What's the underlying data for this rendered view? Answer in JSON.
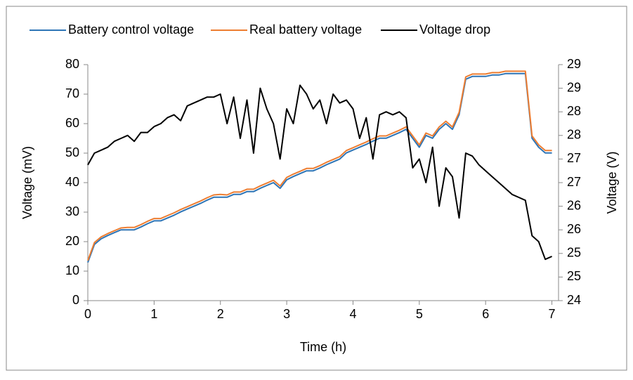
{
  "chart_data": {
    "type": "line",
    "x_label": "Time (h)",
    "y_label": "Voltage (mV)",
    "y2_label": "Voltage (V)",
    "legend": "top",
    "xlim": [
      0,
      7.1
    ],
    "xticks": [
      0,
      1,
      2,
      3,
      4,
      5,
      6,
      7
    ],
    "ylim": [
      0,
      80
    ],
    "yticks": [
      0,
      10,
      20,
      30,
      40,
      50,
      60,
      70,
      80
    ],
    "y2lim": [
      24,
      29
    ],
    "y2ticks": [
      24,
      {
        "value": 24.5,
        "label": "25"
      },
      25,
      {
        "value": 25.5,
        "label": "26"
      },
      26,
      {
        "value": 26.5,
        "label": "27"
      },
      27,
      {
        "value": 27.5,
        "label": "28"
      },
      28,
      {
        "value": 28.5,
        "label": "29"
      },
      29
    ],
    "x": [
      0,
      0.1,
      0.2,
      0.3,
      0.4,
      0.5,
      0.6,
      0.7,
      0.8,
      0.9,
      1.0,
      1.1,
      1.2,
      1.3,
      1.4,
      1.5,
      1.6,
      1.7,
      1.8,
      1.9,
      2.0,
      2.1,
      2.2,
      2.3,
      2.4,
      2.5,
      2.6,
      2.7,
      2.8,
      2.9,
      3.0,
      3.1,
      3.2,
      3.3,
      3.4,
      3.5,
      3.6,
      3.7,
      3.8,
      3.9,
      4.0,
      4.1,
      4.2,
      4.3,
      4.4,
      4.5,
      4.6,
      4.7,
      4.8,
      4.9,
      5.0,
      5.1,
      5.2,
      5.3,
      5.4,
      5.5,
      5.6,
      5.7,
      5.8,
      5.9,
      6.0,
      6.1,
      6.2,
      6.3,
      6.4,
      6.5,
      6.6,
      6.7,
      6.8,
      6.9,
      7.0
    ],
    "series": [
      {
        "name": "Battery control voltage",
        "color": "#2e75b6",
        "axis": "y2",
        "values": [
          24.81,
          25.19,
          25.31,
          25.38,
          25.44,
          25.5,
          25.5,
          25.5,
          25.56,
          25.63,
          25.69,
          25.69,
          25.75,
          25.81,
          25.88,
          25.94,
          26.0,
          26.06,
          26.13,
          26.19,
          26.19,
          26.19,
          26.25,
          26.25,
          26.31,
          26.31,
          26.38,
          26.44,
          26.5,
          26.38,
          26.56,
          26.63,
          26.69,
          26.75,
          26.75,
          26.81,
          26.88,
          26.94,
          27.0,
          27.13,
          27.19,
          27.25,
          27.31,
          27.38,
          27.44,
          27.44,
          27.5,
          27.56,
          27.63,
          27.44,
          27.25,
          27.5,
          27.44,
          27.63,
          27.75,
          27.63,
          27.94,
          28.69,
          28.75,
          28.75,
          28.75,
          28.78,
          28.78,
          28.81,
          28.81,
          28.81,
          28.81,
          27.44,
          27.25,
          27.13,
          27.13
        ]
      },
      {
        "name": "Real battery voltage",
        "color": "#ed7d31",
        "axis": "y2",
        "values": [
          24.85,
          25.23,
          25.35,
          25.42,
          25.48,
          25.54,
          25.55,
          25.55,
          25.61,
          25.68,
          25.74,
          25.74,
          25.8,
          25.86,
          25.93,
          25.99,
          26.05,
          26.11,
          26.18,
          26.24,
          26.25,
          26.24,
          26.3,
          26.3,
          26.36,
          26.36,
          26.43,
          26.49,
          26.55,
          26.43,
          26.61,
          26.68,
          26.74,
          26.8,
          26.8,
          26.86,
          26.93,
          26.99,
          27.05,
          27.18,
          27.24,
          27.3,
          27.36,
          27.43,
          27.49,
          27.49,
          27.55,
          27.61,
          27.68,
          27.49,
          27.3,
          27.55,
          27.49,
          27.68,
          27.8,
          27.68,
          27.99,
          28.74,
          28.8,
          28.8,
          28.8,
          28.83,
          28.83,
          28.86,
          28.86,
          28.86,
          28.86,
          27.49,
          27.3,
          27.18,
          27.18
        ]
      },
      {
        "name": "Voltage drop",
        "color": "#000000",
        "values": [
          46,
          50,
          51,
          52,
          54,
          55,
          56,
          54,
          57,
          57,
          59,
          60,
          62,
          63,
          61,
          66,
          67,
          68,
          69,
          69,
          70,
          60,
          69,
          55,
          68,
          50,
          72,
          65,
          60,
          48,
          65,
          60,
          73,
          70,
          65,
          68,
          60,
          70,
          67,
          68,
          65,
          55,
          62,
          48,
          63,
          64,
          63,
          64,
          62,
          45,
          48,
          40,
          52,
          32,
          45,
          42,
          28,
          50,
          49,
          46,
          44,
          42,
          40,
          38,
          36,
          35,
          34,
          22,
          20,
          14,
          15
        ]
      }
    ]
  }
}
